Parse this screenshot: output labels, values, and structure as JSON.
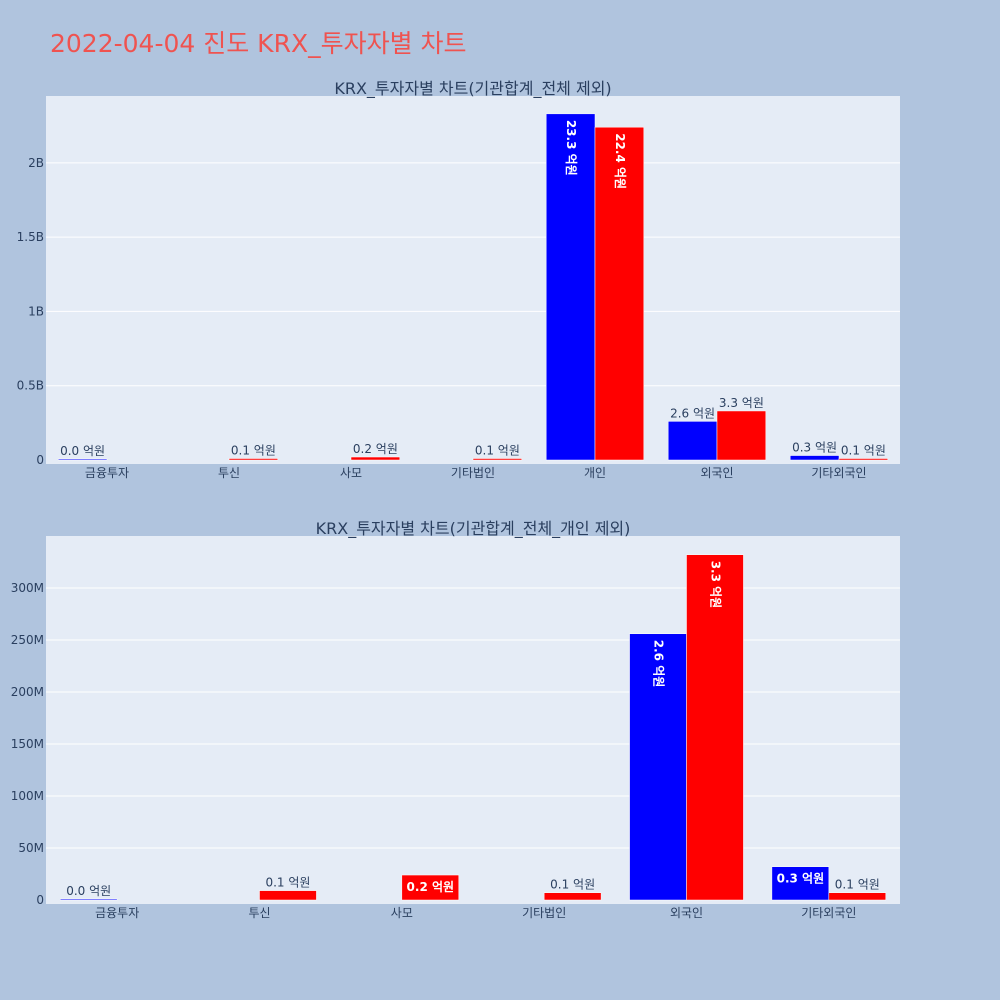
{
  "page_title": "2022-04-04 진도 KRX_투자자별 차트",
  "colors": {
    "background": "#b0c4de",
    "plot_bg": "#e5ecf6",
    "series_a": "#0000ff",
    "series_b": "#ff0000",
    "title": "#ef5350"
  },
  "chart_data": [
    {
      "type": "bar",
      "title": "KRX_투자자별 차트(기관합계_전체 제외)",
      "categories": [
        "금융투자",
        "투신",
        "사모",
        "기타법인",
        "개인",
        "외국인",
        "기타외국인"
      ],
      "series": [
        {
          "color": "#0000ff",
          "values": [
            0,
            null,
            null,
            null,
            2330000000,
            260000000,
            30000000
          ],
          "labels": [
            "0.0 억원",
            "",
            "",
            "",
            "23.3 억원",
            "2.6 억원",
            "0.3 억원"
          ]
        },
        {
          "color": "#ff0000",
          "values": [
            null,
            10000000,
            20000000,
            10000000,
            2240000000,
            330000000,
            10000000
          ],
          "labels": [
            "",
            "0.1 억원",
            "0.2 억원",
            "0.1 억원",
            "22.4 억원",
            "3.3 억원",
            "0.1 억원"
          ]
        }
      ],
      "y_ticks": [
        0,
        500000000,
        1000000000,
        1500000000,
        2000000000
      ],
      "y_tick_labels": [
        "0",
        "0.5B",
        "1B",
        "1.5B",
        "2B"
      ],
      "ylim": [
        0,
        2450000000
      ],
      "grid": true
    },
    {
      "type": "bar",
      "title": "KRX_투자자별 차트(기관합계_전체_개인 제외)",
      "categories": [
        "금융투자",
        "투신",
        "사모",
        "기타법인",
        "외국인",
        "기타외국인"
      ],
      "series": [
        {
          "color": "#0000ff",
          "values": [
            0,
            null,
            null,
            null,
            256000000,
            32000000
          ],
          "labels": [
            "0.0 억원",
            "",
            "",
            "",
            "2.6 억원",
            "0.3 억원"
          ]
        },
        {
          "color": "#ff0000",
          "values": [
            null,
            9000000,
            24000000,
            7000000,
            332000000,
            7000000
          ],
          "labels": [
            "",
            "0.1 억원",
            "0.2 억원",
            "0.1 억원",
            "3.3 억원",
            "0.1 억원"
          ]
        }
      ],
      "y_ticks": [
        0,
        50000000,
        100000000,
        150000000,
        200000000,
        250000000,
        300000000
      ],
      "y_tick_labels": [
        "0",
        "50M",
        "100M",
        "150M",
        "200M",
        "250M",
        "300M"
      ],
      "ylim": [
        0,
        350000000
      ],
      "grid": true
    }
  ]
}
